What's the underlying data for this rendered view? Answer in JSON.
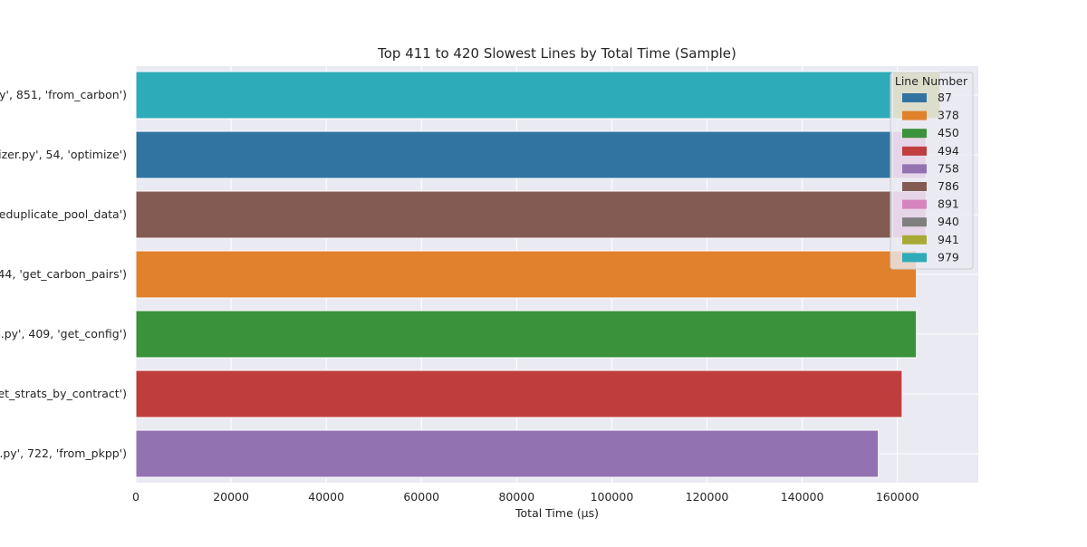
{
  "chart_data": {
    "type": "bar",
    "orientation": "horizontal",
    "title": "Top 411 to 420 Slowest Lines by Total Time (Sample)",
    "xlabel": "Total Time (µs)",
    "ylabel": "",
    "xlim": [
      0,
      177000
    ],
    "xticks": [
      0,
      20000,
      40000,
      60000,
      80000,
      100000,
      120000,
      140000,
      160000
    ],
    "grid": true,
    "categories": [
      "py', 851, 'from_carbon')",
      "nizer.py', 54, 'optimize')",
      "eduplicate_pool_data')",
      "44, 'get_carbon_pairs')",
      "s.py', 409, 'get_config')",
      "et_strats_by_contract')",
      "c.py', 722, 'from_pkpp')",
      "",
      "",
      ""
    ],
    "bars": [
      {
        "category_index": 0,
        "value": 169000,
        "line": "941"
      },
      {
        "category_index": 0,
        "value": 159000,
        "line": "979"
      },
      {
        "category_index": 1,
        "value": 166000,
        "line": "891"
      },
      {
        "category_index": 1,
        "value": 159000,
        "line": "87"
      },
      {
        "category_index": 2,
        "value": 166000,
        "line": "891"
      },
      {
        "category_index": 2,
        "value": 159000,
        "line": "786"
      },
      {
        "category_index": 3,
        "value": 164000,
        "line": "378"
      },
      {
        "category_index": 4,
        "value": 164000,
        "line": "450"
      },
      {
        "category_index": 5,
        "value": 161000,
        "line": "494"
      },
      {
        "category_index": 6,
        "value": 156000,
        "line": "758"
      }
    ],
    "legend": {
      "title": "Line Number",
      "placement": "top-right",
      "entries": [
        {
          "label": "87",
          "color": "#3274a1"
        },
        {
          "label": "378",
          "color": "#e1812c"
        },
        {
          "label": "450",
          "color": "#3a923a"
        },
        {
          "label": "494",
          "color": "#c03d3e"
        },
        {
          "label": "758",
          "color": "#9372b2"
        },
        {
          "label": "786",
          "color": "#845b53"
        },
        {
          "label": "891",
          "color": "#d684bd"
        },
        {
          "label": "940",
          "color": "#7f7f7f"
        },
        {
          "label": "941",
          "color": "#a9aa35"
        },
        {
          "label": "979",
          "color": "#2eabb8"
        }
      ]
    }
  }
}
